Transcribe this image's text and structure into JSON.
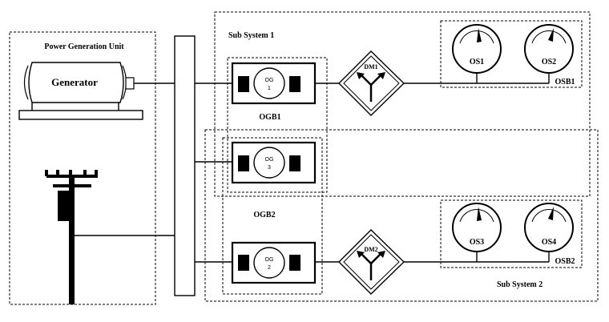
{
  "power_unit": {
    "title": "Power Generation Unit",
    "generator_label": "Generator"
  },
  "subsystem1": {
    "title": "Sub System 1"
  },
  "subsystem2": {
    "title": "Sub System 2"
  },
  "og_groups": {
    "ogb1": "OGB1",
    "ogb2": "OGB2"
  },
  "generators": [
    {
      "id": "og1",
      "label_top": "OG",
      "label_bottom": "1"
    },
    {
      "id": "og3",
      "label_top": "OG",
      "label_bottom": "3"
    },
    {
      "id": "og2",
      "label_top": "OG",
      "label_bottom": "2"
    }
  ],
  "distribution_modules": {
    "dm1": "DM1",
    "dm2": "DM2"
  },
  "output_stations": {
    "os1": "OS1",
    "os2": "OS2",
    "os3": "OS3",
    "os4": "OS4"
  },
  "output_groups": {
    "osb1": "OSB1",
    "osb2": "OSB2"
  }
}
